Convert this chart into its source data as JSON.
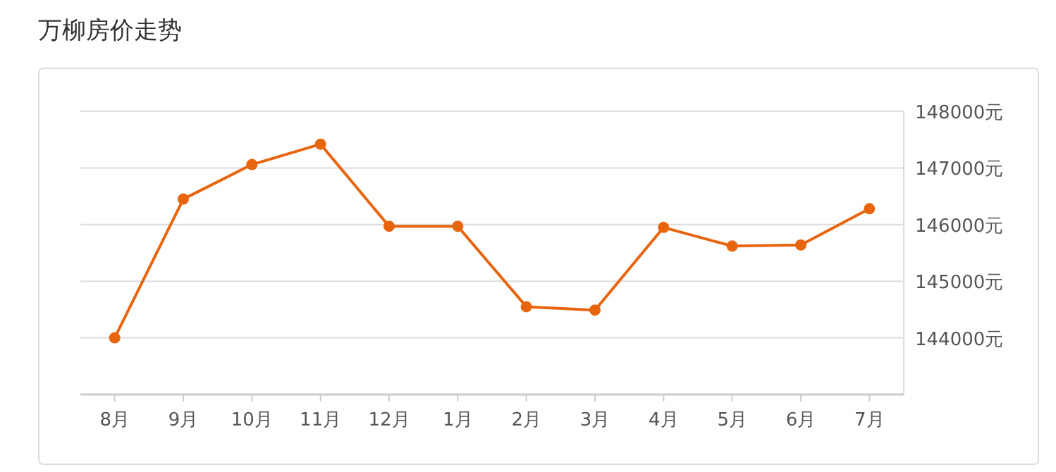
{
  "chart_data": {
    "type": "line",
    "title": "万柳房价走势",
    "categories": [
      "8月",
      "9月",
      "10月",
      "11月",
      "12月",
      "1月",
      "2月",
      "3月",
      "4月",
      "5月",
      "6月",
      "7月"
    ],
    "series": [
      {
        "color": "#e8650f",
        "values": [
          144000,
          146450,
          147060,
          147420,
          145970,
          145970,
          144550,
          144490,
          145950,
          145620,
          145640,
          146280
        ]
      }
    ],
    "ylim": [
      143000,
      148000
    ],
    "yticks": [
      {
        "value": 144000,
        "label": "144000元"
      },
      {
        "value": 145000,
        "label": "145000元"
      },
      {
        "value": 146000,
        "label": "146000元"
      },
      {
        "value": 147000,
        "label": "147000元"
      },
      {
        "value": 148000,
        "label": "148000元"
      }
    ],
    "grid": "y",
    "marker": "circle",
    "line_style": "solid"
  }
}
